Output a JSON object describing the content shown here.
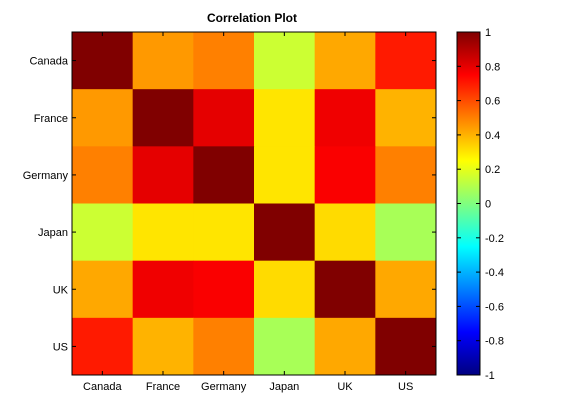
{
  "chart_data": {
    "type": "heatmap",
    "title": "Correlation Plot",
    "xlabel": "",
    "ylabel": "",
    "x_categories": [
      "Canada",
      "France",
      "Germany",
      "Japan",
      "UK",
      "US"
    ],
    "y_categories": [
      "Canada",
      "France",
      "Germany",
      "Japan",
      "UK",
      "US"
    ],
    "values": [
      [
        1.0,
        0.45,
        0.5,
        0.15,
        0.42,
        0.7
      ],
      [
        0.45,
        1.0,
        0.8,
        0.3,
        0.78,
        0.4
      ],
      [
        0.5,
        0.8,
        1.0,
        0.3,
        0.76,
        0.5
      ],
      [
        0.15,
        0.3,
        0.3,
        1.0,
        0.32,
        0.08
      ],
      [
        0.42,
        0.78,
        0.76,
        0.32,
        1.0,
        0.42
      ],
      [
        0.7,
        0.4,
        0.5,
        0.08,
        0.42,
        1.0
      ]
    ],
    "colormap": "jet",
    "clim": [
      -1,
      1
    ],
    "colorbar_ticks": [
      1,
      0.8,
      0.6,
      0.4,
      0.2,
      0,
      -0.2,
      -0.4,
      -0.6,
      -0.8,
      -1
    ],
    "colorbar_labels": [
      "1",
      "0.8",
      "0.6",
      "0.4",
      "0.2",
      "0",
      "-0.2",
      "-0.4",
      "-0.6",
      "-0.8",
      "-1"
    ],
    "colorbar_placement": "right",
    "grid": false
  }
}
